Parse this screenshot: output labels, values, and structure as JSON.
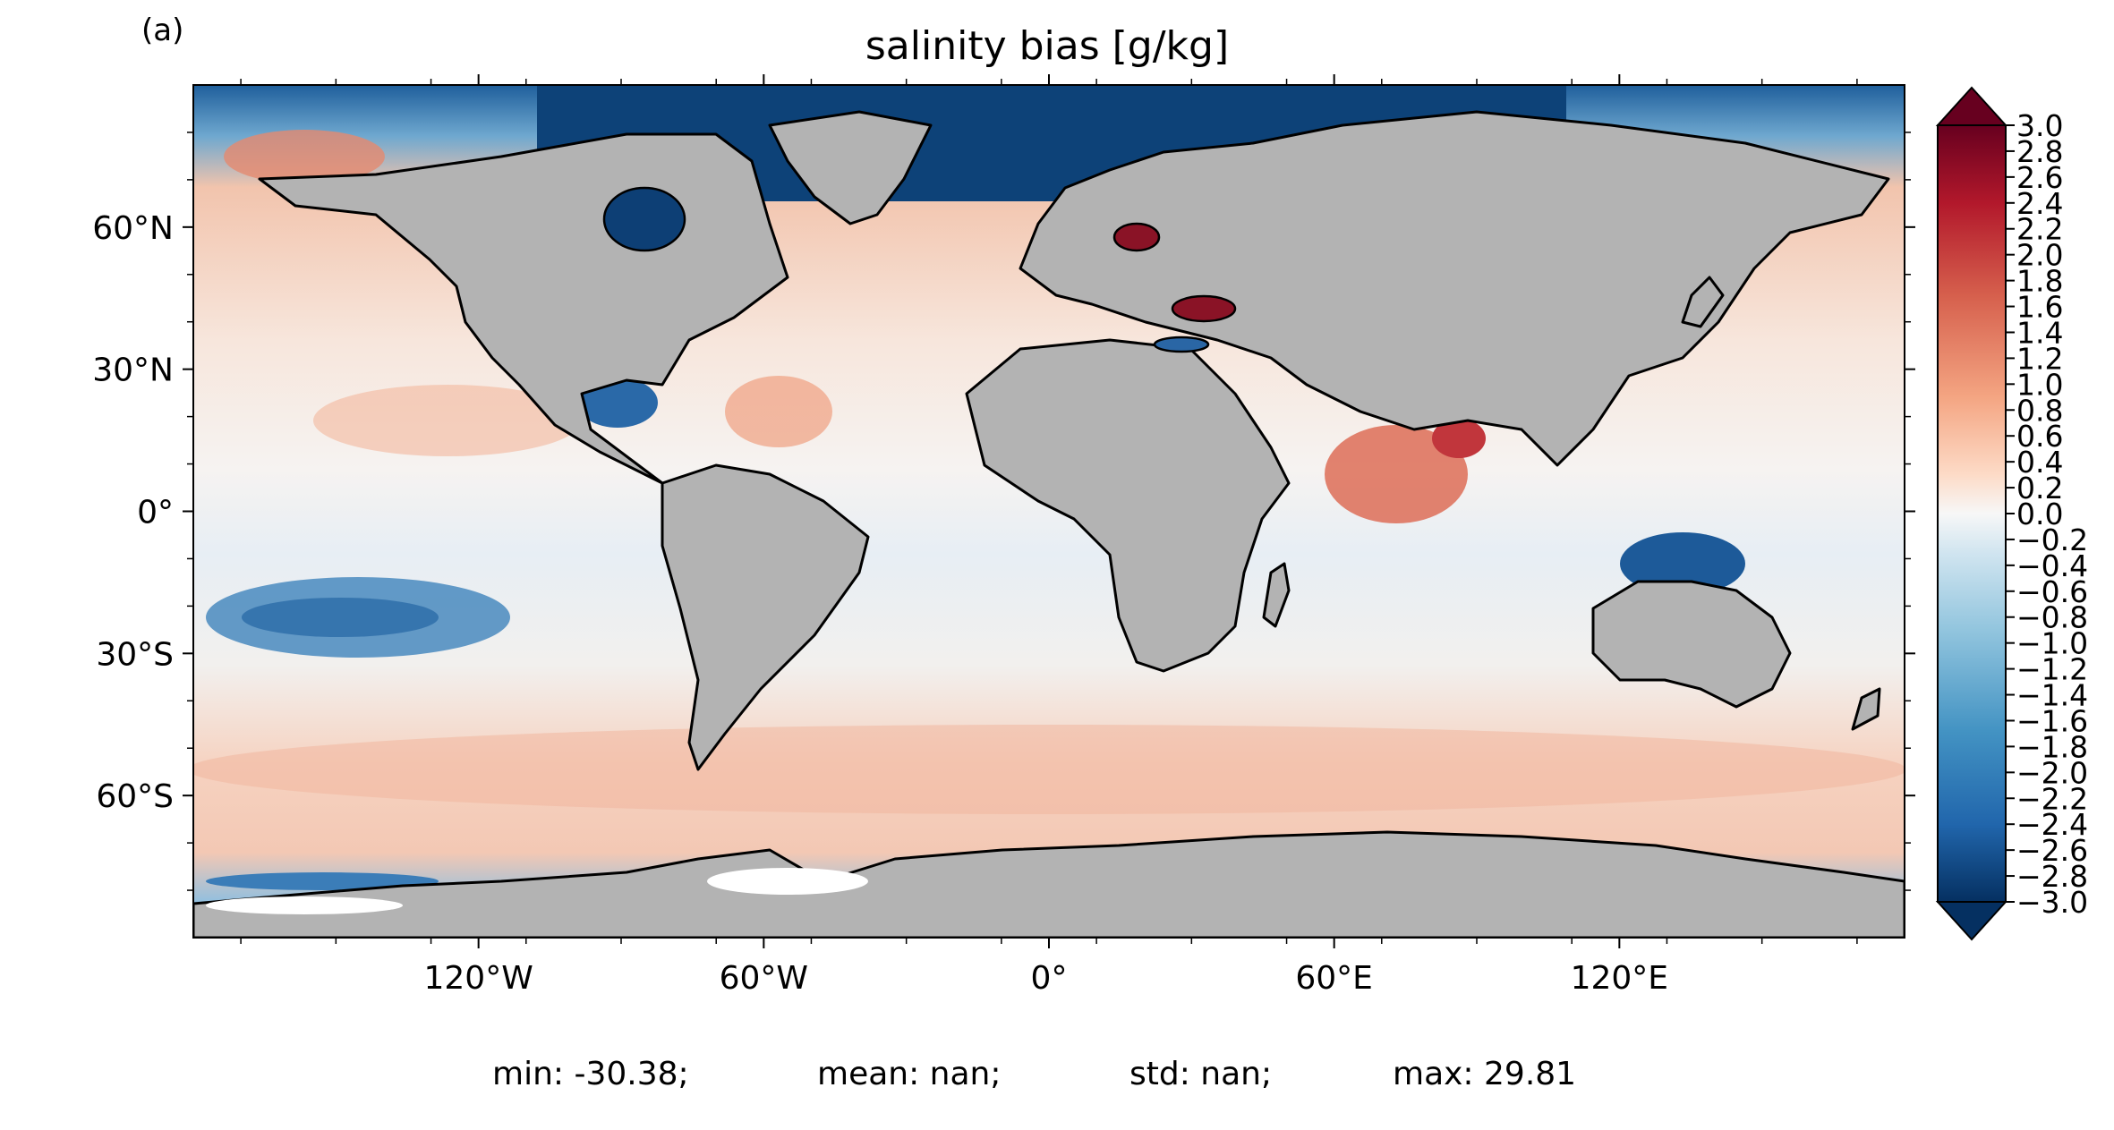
{
  "panel_label": "(a)",
  "title": "salinity bias [g/kg]",
  "stats": {
    "min": "min: -30.38;",
    "mean": "mean: nan;",
    "std": "std: nan;",
    "max": "max: 29.81"
  },
  "map": {
    "projection": "PlateCarree",
    "lon_range": [
      -180,
      180
    ],
    "lat_range": [
      -90,
      90
    ],
    "land_color": "#b3b3b3",
    "coastline_color": "#000000",
    "lat_ticks": [
      {
        "value": 60,
        "label": "60°N"
      },
      {
        "value": 30,
        "label": "30°N"
      },
      {
        "value": 0,
        "label": "0°"
      },
      {
        "value": -30,
        "label": "30°S"
      },
      {
        "value": -60,
        "label": "60°S"
      }
    ],
    "lon_ticks": [
      {
        "value": -120,
        "label": "120°W"
      },
      {
        "value": -60,
        "label": "60°W"
      },
      {
        "value": 0,
        "label": "0°"
      },
      {
        "value": 60,
        "label": "60°E"
      },
      {
        "value": 120,
        "label": "120°E"
      }
    ]
  },
  "colorbar": {
    "cmap": "RdBu_r",
    "range": [
      -3.0,
      3.0
    ],
    "extend": "both",
    "tick_labels": [
      "3.0",
      "2.8",
      "2.6",
      "2.4",
      "2.2",
      "2.0",
      "1.8",
      "1.6",
      "1.4",
      "1.2",
      "1.0",
      "0.8",
      "0.6",
      "0.4",
      "0.2",
      "0.0",
      "−0.2",
      "−0.4",
      "−0.6",
      "−0.8",
      "−1.0",
      "−1.2",
      "−1.4",
      "−1.6",
      "−1.8",
      "−2.0",
      "−2.2",
      "−2.4",
      "−2.6",
      "−2.8",
      "−3.0"
    ],
    "low_color": "#053061",
    "mid_color": "#f7f7f7",
    "high_color": "#67001f"
  }
}
